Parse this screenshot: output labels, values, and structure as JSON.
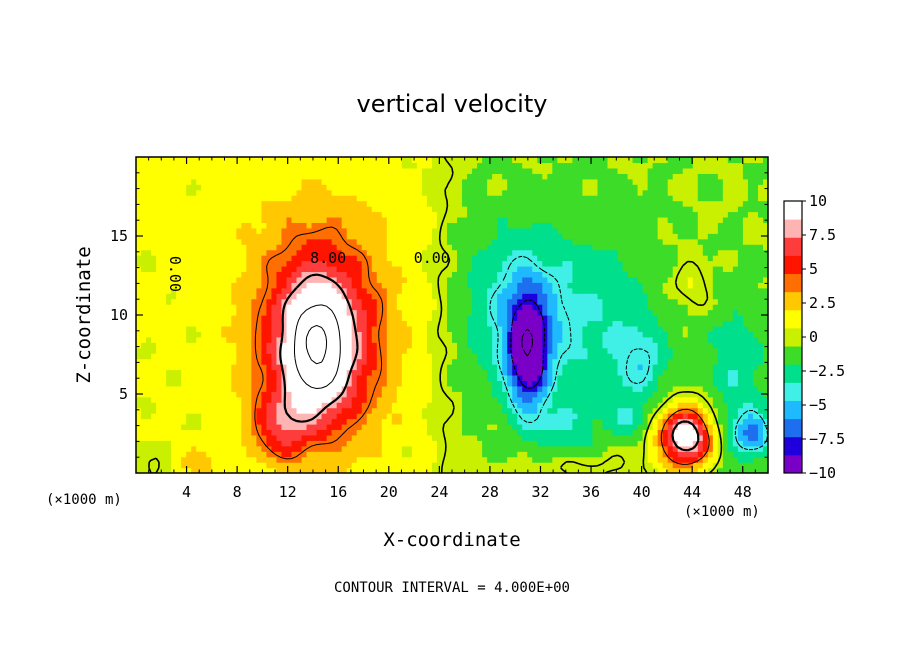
{
  "chart_data": {
    "type": "heatmap",
    "title": "vertical velocity",
    "xlabel": "X-coordinate",
    "ylabel": "Z-coordinate",
    "x_unit": "(×1000 m)",
    "x_unit_right": "(×1000 m)",
    "footer": "CONTOUR INTERVAL = 4.000E+00",
    "xlim": [
      0,
      50
    ],
    "ylim": [
      0,
      20
    ],
    "x_ticks": [
      4,
      8,
      12,
      16,
      20,
      24,
      28,
      32,
      36,
      40,
      44,
      48
    ],
    "y_ticks": [
      5,
      10,
      15
    ],
    "contour_interval": 4.0,
    "contour_labels": [
      {
        "text": "8.00",
        "x": 15.2,
        "z": 13.6,
        "angle": 0
      },
      {
        "text": "0.00",
        "x": 3.1,
        "z": 12.6,
        "angle": 90
      },
      {
        "text": "0.00",
        "x": 23.4,
        "z": 13.6,
        "angle": 0
      }
    ],
    "colorbar": {
      "min": -10,
      "max": 10,
      "ticks": [
        10,
        7.5,
        5,
        2.5,
        0,
        -2.5,
        -5,
        -7.5,
        -10
      ],
      "tick_labels": [
        "10",
        "7.5",
        "5",
        "2.5",
        "0",
        "−2.5",
        "−5",
        "−7.5",
        "−10"
      ],
      "colors": [
        "#7a00c8",
        "#1f00dc",
        "#1e6ef0",
        "#1eb9ff",
        "#40f0e6",
        "#00e08c",
        "#3cdc28",
        "#c8f000",
        "#ffff00",
        "#ffc800",
        "#ff6e00",
        "#ff1400",
        "#ff3c3c",
        "#ffb4b4",
        "#ffffff"
      ]
    },
    "features": [
      {
        "name": "updraft core",
        "x": 14.5,
        "z": 8.0,
        "w_max": 16.5
      },
      {
        "name": "downdraft core",
        "x": 31.2,
        "z": 7.3,
        "w_min": -12.0
      },
      {
        "name": "low-level updraft",
        "x": 43.5,
        "z": 2.0,
        "w_max": 8.0
      },
      {
        "name": "downdraft",
        "x": 48.8,
        "z": 2.5,
        "w_min": -7.0
      }
    ]
  }
}
